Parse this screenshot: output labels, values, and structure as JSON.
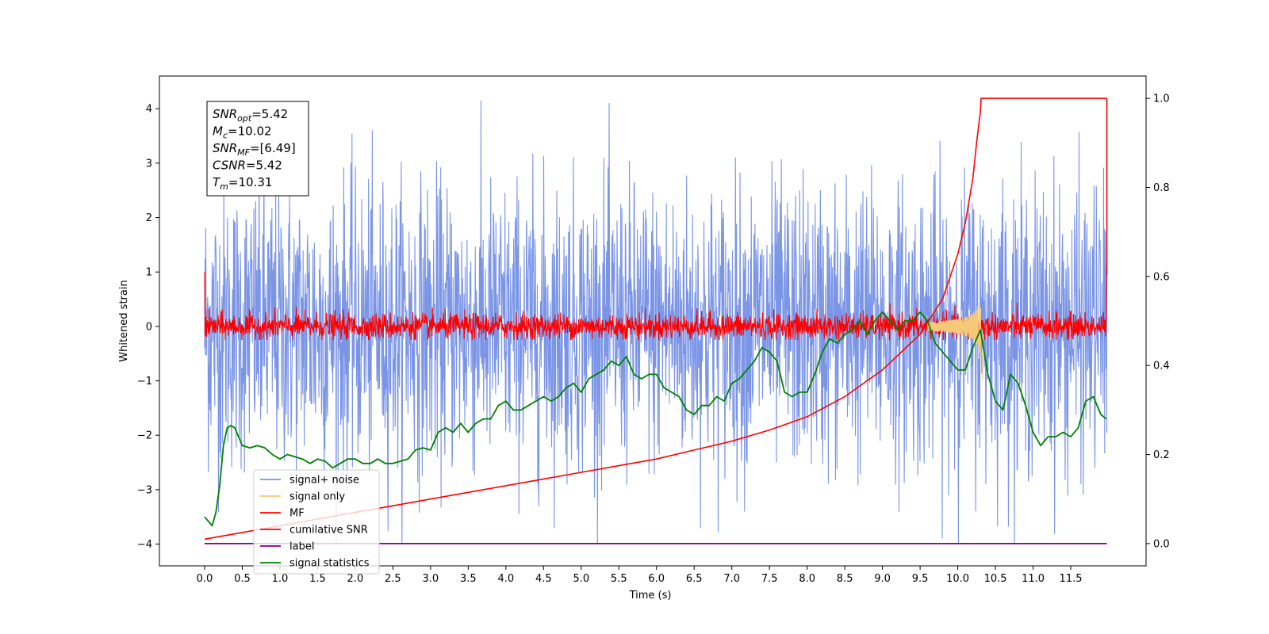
{
  "chart_data": {
    "type": "line",
    "xlabel": "Time (s)",
    "ylabel": "Whitened strain",
    "xlim": [
      -0.6,
      12.5
    ],
    "ylim": [
      -4.4,
      4.6
    ],
    "ylim_right": [
      -0.05,
      1.05
    ],
    "x_ticks": [
      "0.0",
      "0.5",
      "1.0",
      "1.5",
      "2.0",
      "2.5",
      "3.0",
      "3.5",
      "4.0",
      "4.5",
      "5.0",
      "5.5",
      "6.0",
      "6.5",
      "7.0",
      "7.5",
      "8.0",
      "8.5",
      "9.0",
      "9.5",
      "10.0",
      "10.5",
      "11.0",
      "11.5"
    ],
    "y_ticks": [
      "4",
      "3",
      "2",
      "1",
      "0",
      "−1",
      "−2",
      "−3",
      "−4"
    ],
    "y_right_ticks": [
      "1.0",
      "0.8",
      "0.6",
      "0.4",
      "0.2",
      "0.0"
    ],
    "legend_position": "lower-left",
    "info_box": {
      "lines": [
        {
          "name": "SNR",
          "sub": "opt",
          "value": "=5.42"
        },
        {
          "name": "M",
          "sub": "c",
          "value": "=10.02"
        },
        {
          "name": "SNR",
          "sub": "MF",
          "value": "=[6.49]"
        },
        {
          "name": "CSNR",
          "sub": "",
          "value": "=5.42"
        },
        {
          "name": "T",
          "sub": "m",
          "value": "=10.31"
        }
      ]
    },
    "series": [
      {
        "name": "signal+ noise",
        "color": "#7b95e6",
        "axis": "left",
        "kind": "noise",
        "amplitude_range": [
          -4.0,
          4.15
        ],
        "typical_std": 1.3
      },
      {
        "name": "signal only",
        "color": "#f5c87a",
        "axis": "left",
        "kind": "chirp",
        "peak_time": 10.31,
        "peak_amplitude": 0.75
      },
      {
        "name": "MF",
        "color": "#ff0000",
        "axis": "left",
        "kind": "noise",
        "amplitude_range": [
          -0.25,
          0.45
        ],
        "start_value": 1.0,
        "end_value": 0.95
      },
      {
        "name": "cumilative SNR",
        "color": "#ff0000",
        "axis": "right",
        "x": [
          0.0,
          0.5,
          1.0,
          1.5,
          2.0,
          2.5,
          3.0,
          3.5,
          4.0,
          4.5,
          5.0,
          5.5,
          6.0,
          6.5,
          7.0,
          7.5,
          8.0,
          8.5,
          9.0,
          9.5,
          9.8,
          10.0,
          10.1,
          10.2,
          10.25,
          10.3,
          10.31,
          11.98
        ],
        "values": [
          0.01,
          0.025,
          0.04,
          0.055,
          0.07,
          0.085,
          0.1,
          0.115,
          0.13,
          0.145,
          0.16,
          0.175,
          0.19,
          0.21,
          0.23,
          0.255,
          0.285,
          0.33,
          0.39,
          0.47,
          0.55,
          0.65,
          0.72,
          0.82,
          0.9,
          0.97,
          1.0,
          1.0
        ]
      },
      {
        "name": "label",
        "color": "#800080",
        "axis": "right",
        "x": [
          0.0,
          11.98
        ],
        "values": [
          0.0,
          0.0
        ]
      },
      {
        "name": "signal statistics",
        "color": "#008000",
        "axis": "right",
        "x": [
          0.0,
          0.1,
          0.15,
          0.2,
          0.25,
          0.3,
          0.35,
          0.4,
          0.5,
          0.6,
          0.7,
          0.8,
          0.9,
          1.0,
          1.1,
          1.2,
          1.3,
          1.4,
          1.5,
          1.6,
          1.7,
          1.8,
          1.9,
          2.0,
          2.1,
          2.2,
          2.3,
          2.4,
          2.5,
          2.6,
          2.7,
          2.8,
          2.9,
          3.0,
          3.1,
          3.2,
          3.3,
          3.4,
          3.5,
          3.6,
          3.7,
          3.8,
          3.9,
          4.0,
          4.1,
          4.2,
          4.3,
          4.4,
          4.5,
          4.6,
          4.7,
          4.8,
          4.9,
          5.0,
          5.1,
          5.2,
          5.3,
          5.4,
          5.5,
          5.6,
          5.7,
          5.8,
          5.9,
          6.0,
          6.1,
          6.2,
          6.3,
          6.4,
          6.5,
          6.6,
          6.7,
          6.8,
          6.9,
          7.0,
          7.1,
          7.2,
          7.3,
          7.4,
          7.5,
          7.6,
          7.7,
          7.8,
          7.9,
          8.0,
          8.1,
          8.2,
          8.3,
          8.4,
          8.5,
          8.6,
          8.7,
          8.8,
          8.9,
          9.0,
          9.1,
          9.2,
          9.3,
          9.4,
          9.5,
          9.6,
          9.7,
          9.8,
          9.9,
          10.0,
          10.1,
          10.2,
          10.3,
          10.4,
          10.5,
          10.6,
          10.7,
          10.8,
          10.9,
          11.0,
          11.1,
          11.2,
          11.3,
          11.4,
          11.5,
          11.6,
          11.7,
          11.8,
          11.9,
          11.97
        ],
        "values": [
          0.06,
          0.04,
          0.07,
          0.13,
          0.22,
          0.26,
          0.265,
          0.26,
          0.22,
          0.215,
          0.22,
          0.215,
          0.2,
          0.19,
          0.2,
          0.195,
          0.19,
          0.18,
          0.19,
          0.185,
          0.17,
          0.18,
          0.19,
          0.19,
          0.18,
          0.18,
          0.19,
          0.18,
          0.18,
          0.185,
          0.19,
          0.21,
          0.215,
          0.21,
          0.25,
          0.26,
          0.25,
          0.27,
          0.25,
          0.27,
          0.28,
          0.28,
          0.31,
          0.32,
          0.3,
          0.3,
          0.31,
          0.32,
          0.33,
          0.32,
          0.33,
          0.35,
          0.36,
          0.34,
          0.37,
          0.38,
          0.39,
          0.41,
          0.4,
          0.42,
          0.38,
          0.37,
          0.38,
          0.38,
          0.35,
          0.34,
          0.33,
          0.3,
          0.29,
          0.31,
          0.31,
          0.33,
          0.32,
          0.36,
          0.37,
          0.39,
          0.41,
          0.44,
          0.43,
          0.41,
          0.34,
          0.33,
          0.34,
          0.34,
          0.38,
          0.43,
          0.46,
          0.45,
          0.47,
          0.48,
          0.5,
          0.47,
          0.5,
          0.52,
          0.5,
          0.48,
          0.5,
          0.5,
          0.52,
          0.5,
          0.45,
          0.43,
          0.41,
          0.39,
          0.39,
          0.44,
          0.48,
          0.38,
          0.32,
          0.3,
          0.38,
          0.36,
          0.31,
          0.25,
          0.22,
          0.24,
          0.24,
          0.25,
          0.24,
          0.26,
          0.32,
          0.33,
          0.29,
          0.28
        ]
      }
    ]
  }
}
